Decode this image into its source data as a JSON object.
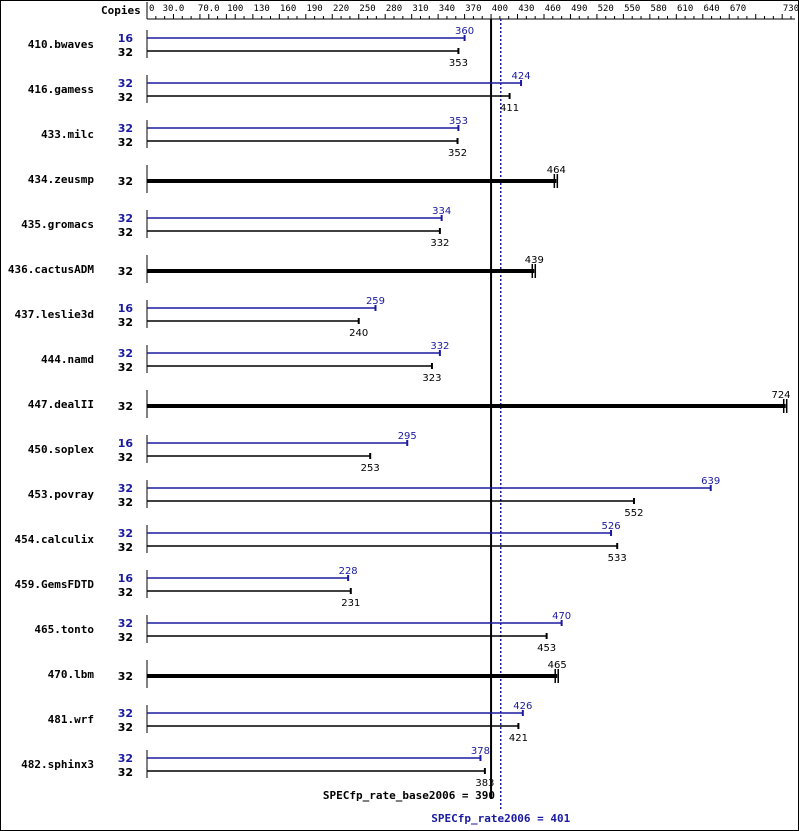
{
  "chart_data": {
    "type": "bar",
    "orientation": "horizontal",
    "header_label": "Copies",
    "x_ticks": [
      "0",
      "30.0",
      "70.0",
      "100",
      "130",
      "160",
      "190",
      "220",
      "250",
      "280",
      "310",
      "340",
      "370",
      "400",
      "430",
      "460",
      "490",
      "520",
      "550",
      "580",
      "610",
      "640",
      "670",
      "730"
    ],
    "xlim": [
      0,
      730
    ],
    "grid": false,
    "colors": {
      "base": "#000000",
      "peak": "#1a1aa0"
    },
    "categories": [
      {
        "name": "410.bwaves",
        "peak_copies": "16",
        "base_copies": "32",
        "peak": 360,
        "base": 353
      },
      {
        "name": "416.gamess",
        "peak_copies": "32",
        "base_copies": "32",
        "peak": 424,
        "base": 411
      },
      {
        "name": "433.milc",
        "peak_copies": "32",
        "base_copies": "32",
        "peak": 353,
        "base": 352
      },
      {
        "name": "434.zeusmp",
        "peak_copies": null,
        "base_copies": "32",
        "peak": null,
        "base": 464
      },
      {
        "name": "435.gromacs",
        "peak_copies": "32",
        "base_copies": "32",
        "peak": 334,
        "base": 332
      },
      {
        "name": "436.cactusADM",
        "peak_copies": null,
        "base_copies": "32",
        "peak": null,
        "base": 439
      },
      {
        "name": "437.leslie3d",
        "peak_copies": "16",
        "base_copies": "32",
        "peak": 259,
        "base": 240
      },
      {
        "name": "444.namd",
        "peak_copies": "32",
        "base_copies": "32",
        "peak": 332,
        "base": 323
      },
      {
        "name": "447.dealII",
        "peak_copies": null,
        "base_copies": "32",
        "peak": null,
        "base": 724
      },
      {
        "name": "450.soplex",
        "peak_copies": "16",
        "base_copies": "32",
        "peak": 295,
        "base": 253
      },
      {
        "name": "453.povray",
        "peak_copies": "32",
        "base_copies": "32",
        "peak": 639,
        "base": 552
      },
      {
        "name": "454.calculix",
        "peak_copies": "32",
        "base_copies": "32",
        "peak": 526,
        "base": 533
      },
      {
        "name": "459.GemsFDTD",
        "peak_copies": "16",
        "base_copies": "32",
        "peak": 228,
        "base": 231
      },
      {
        "name": "465.tonto",
        "peak_copies": "32",
        "base_copies": "32",
        "peak": 470,
        "base": 453
      },
      {
        "name": "470.lbm",
        "peak_copies": null,
        "base_copies": "32",
        "peak": null,
        "base": 465
      },
      {
        "name": "481.wrf",
        "peak_copies": "32",
        "base_copies": "32",
        "peak": 426,
        "base": 421
      },
      {
        "name": "482.sphinx3",
        "peak_copies": "32",
        "base_copies": "32",
        "peak": 378,
        "base": 383
      }
    ],
    "reference_lines": [
      {
        "label": "SPECfp_rate_base2006 = 390",
        "value": 390,
        "style": "solid",
        "color": "#000000"
      },
      {
        "label": "SPECfp_rate2006 = 401",
        "value": 401,
        "style": "dotted",
        "color": "#1a1aa0"
      }
    ]
  }
}
